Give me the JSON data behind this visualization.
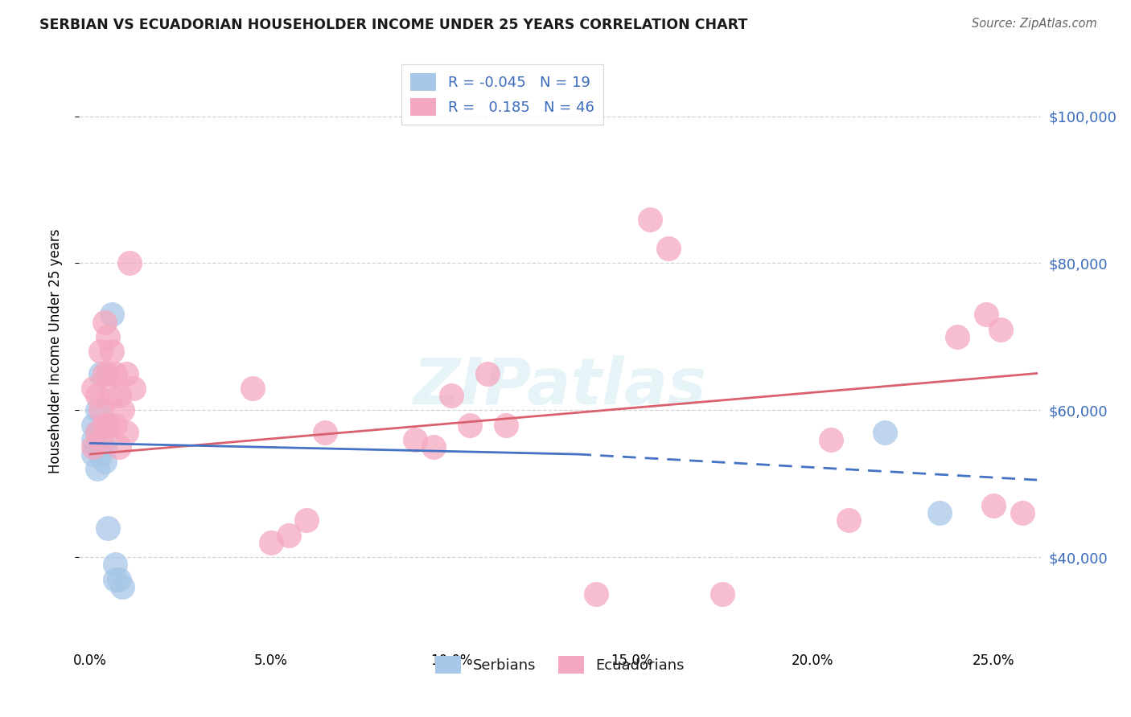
{
  "title": "SERBIAN VS ECUADORIAN HOUSEHOLDER INCOME UNDER 25 YEARS CORRELATION CHART",
  "source": "Source: ZipAtlas.com",
  "ylabel": "Householder Income Under 25 years",
  "xlabel_ticks": [
    "0.0%",
    "5.0%",
    "10.0%",
    "15.0%",
    "20.0%",
    "25.0%"
  ],
  "xlabel_vals": [
    0.0,
    0.05,
    0.1,
    0.15,
    0.2,
    0.25
  ],
  "ytick_labels": [
    "$40,000",
    "$60,000",
    "$80,000",
    "$100,000"
  ],
  "ytick_vals": [
    40000,
    60000,
    80000,
    100000
  ],
  "ylim": [
    28000,
    108000
  ],
  "xlim": [
    -0.003,
    0.263
  ],
  "serbian_R": -0.045,
  "serbian_N": 19,
  "ecuadorian_R": 0.185,
  "ecuadorian_N": 46,
  "serbian_color": "#a8c8e8",
  "ecuadorian_color": "#f4a8c0",
  "serbian_line_color": "#4472c4",
  "ecuadorian_line_color": "#d9606e",
  "watermark_text": "ZIPatlas",
  "legend_serbian_label": "Serbians",
  "legend_ecuadorian_label": "Ecuadorians",
  "serbian_x": [
    0.001,
    0.001,
    0.001,
    0.002,
    0.002,
    0.002,
    0.002,
    0.003,
    0.003,
    0.004,
    0.004,
    0.005,
    0.006,
    0.007,
    0.007,
    0.008,
    0.009,
    0.22,
    0.235
  ],
  "serbian_y": [
    56000,
    54000,
    58000,
    55000,
    52000,
    57000,
    60000,
    54000,
    65000,
    55000,
    53000,
    44000,
    73000,
    37000,
    39000,
    37000,
    36000,
    57000,
    46000
  ],
  "ecuadorian_x": [
    0.001,
    0.001,
    0.002,
    0.002,
    0.003,
    0.003,
    0.003,
    0.004,
    0.004,
    0.004,
    0.005,
    0.005,
    0.005,
    0.006,
    0.006,
    0.007,
    0.007,
    0.008,
    0.008,
    0.009,
    0.01,
    0.01,
    0.011,
    0.012,
    0.045,
    0.05,
    0.055,
    0.06,
    0.065,
    0.09,
    0.095,
    0.1,
    0.105,
    0.11,
    0.115,
    0.14,
    0.155,
    0.16,
    0.175,
    0.205,
    0.21,
    0.24,
    0.248,
    0.25,
    0.252,
    0.258
  ],
  "ecuadorian_y": [
    55000,
    63000,
    57000,
    62000,
    56000,
    60000,
    68000,
    65000,
    72000,
    58000,
    58000,
    65000,
    70000,
    62000,
    68000,
    58000,
    65000,
    55000,
    62000,
    60000,
    65000,
    57000,
    80000,
    63000,
    63000,
    42000,
    43000,
    45000,
    57000,
    56000,
    55000,
    62000,
    58000,
    65000,
    58000,
    35000,
    86000,
    82000,
    35000,
    56000,
    45000,
    70000,
    73000,
    47000,
    71000,
    46000
  ],
  "background_color": "#ffffff",
  "grid_color": "#c8c8c8",
  "grid_linestyle": "--"
}
